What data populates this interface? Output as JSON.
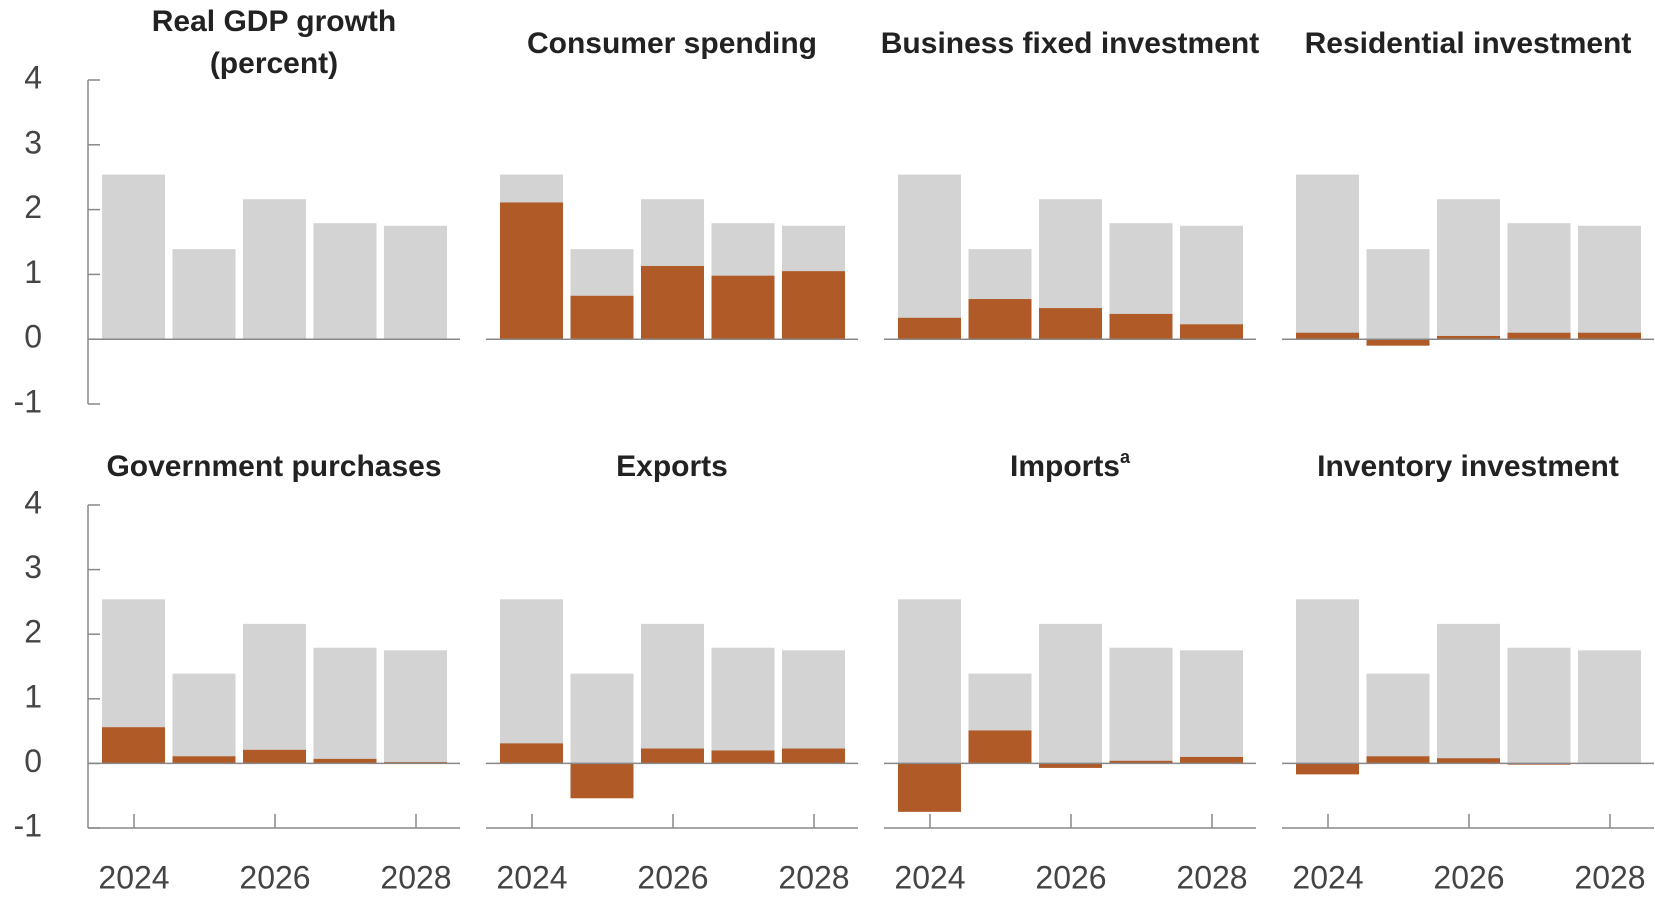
{
  "chart_data": [
    {
      "type": "bar",
      "title": "Real GDP growth",
      "subtitle": "(percent)",
      "ylim": [
        -1,
        4
      ],
      "yticks": [
        -1,
        0,
        1,
        2,
        3,
        4
      ],
      "series": [
        {
          "color": "#d3d3d3",
          "values": [
            2.54,
            1.39,
            2.16,
            1.79,
            1.75
          ]
        }
      ]
    },
    {
      "type": "bar",
      "title": "Consumer spending",
      "ylim": [
        -1,
        4
      ],
      "series": [
        {
          "color": "#d3d3d3",
          "values": [
            2.54,
            1.39,
            2.16,
            1.79,
            1.75
          ]
        },
        {
          "color": "#b05a28",
          "values": [
            2.11,
            0.67,
            1.13,
            0.98,
            1.05
          ]
        }
      ]
    },
    {
      "type": "bar",
      "title": "Business fixed investment",
      "ylim": [
        -1,
        4
      ],
      "series": [
        {
          "color": "#d3d3d3",
          "values": [
            2.54,
            1.39,
            2.16,
            1.79,
            1.75
          ]
        },
        {
          "color": "#b05a28",
          "values": [
            0.33,
            0.62,
            0.48,
            0.39,
            0.23
          ]
        }
      ]
    },
    {
      "type": "bar",
      "title": "Residential investment",
      "ylim": [
        -1,
        4
      ],
      "series": [
        {
          "color": "#d3d3d3",
          "values": [
            2.54,
            1.39,
            2.16,
            1.79,
            1.75
          ]
        },
        {
          "color": "#b05a28",
          "values": [
            0.1,
            -0.1,
            0.05,
            0.1,
            0.1
          ]
        }
      ]
    },
    {
      "type": "bar",
      "title": "Government purchases",
      "ylim": [
        -1,
        4
      ],
      "yticks": [
        -1,
        0,
        1,
        2,
        3,
        4
      ],
      "categories": [
        "2024",
        null,
        "2026",
        null,
        "2028"
      ],
      "series": [
        {
          "color": "#d3d3d3",
          "values": [
            2.54,
            1.39,
            2.16,
            1.79,
            1.75
          ]
        },
        {
          "color": "#b05a28",
          "values": [
            0.56,
            0.11,
            0.21,
            0.07,
            0.02
          ]
        }
      ]
    },
    {
      "type": "bar",
      "title": "Exports",
      "ylim": [
        -1,
        4
      ],
      "categories": [
        "2024",
        null,
        "2026",
        null,
        "2028"
      ],
      "series": [
        {
          "color": "#d3d3d3",
          "values": [
            2.54,
            1.39,
            2.16,
            1.79,
            1.75
          ]
        },
        {
          "color": "#b05a28",
          "values": [
            0.31,
            -0.54,
            0.23,
            0.2,
            0.23
          ]
        }
      ]
    },
    {
      "type": "bar",
      "title": "Imports",
      "title_superscript": "a",
      "ylim": [
        -1,
        4
      ],
      "categories": [
        "2024",
        null,
        "2026",
        null,
        "2028"
      ],
      "series": [
        {
          "color": "#d3d3d3",
          "values": [
            2.54,
            1.39,
            2.16,
            1.79,
            1.75
          ]
        },
        {
          "color": "#b05a28",
          "values": [
            -0.75,
            0.51,
            -0.07,
            0.04,
            0.1
          ]
        }
      ]
    },
    {
      "type": "bar",
      "title": "Inventory investment",
      "ylim": [
        -1,
        4
      ],
      "categories": [
        "2024",
        null,
        "2026",
        null,
        "2028"
      ],
      "series": [
        {
          "color": "#d3d3d3",
          "values": [
            2.54,
            1.39,
            2.16,
            1.79,
            1.75
          ]
        },
        {
          "color": "#b05a28",
          "values": [
            -0.17,
            0.11,
            0.08,
            -0.02,
            0
          ]
        }
      ]
    }
  ]
}
